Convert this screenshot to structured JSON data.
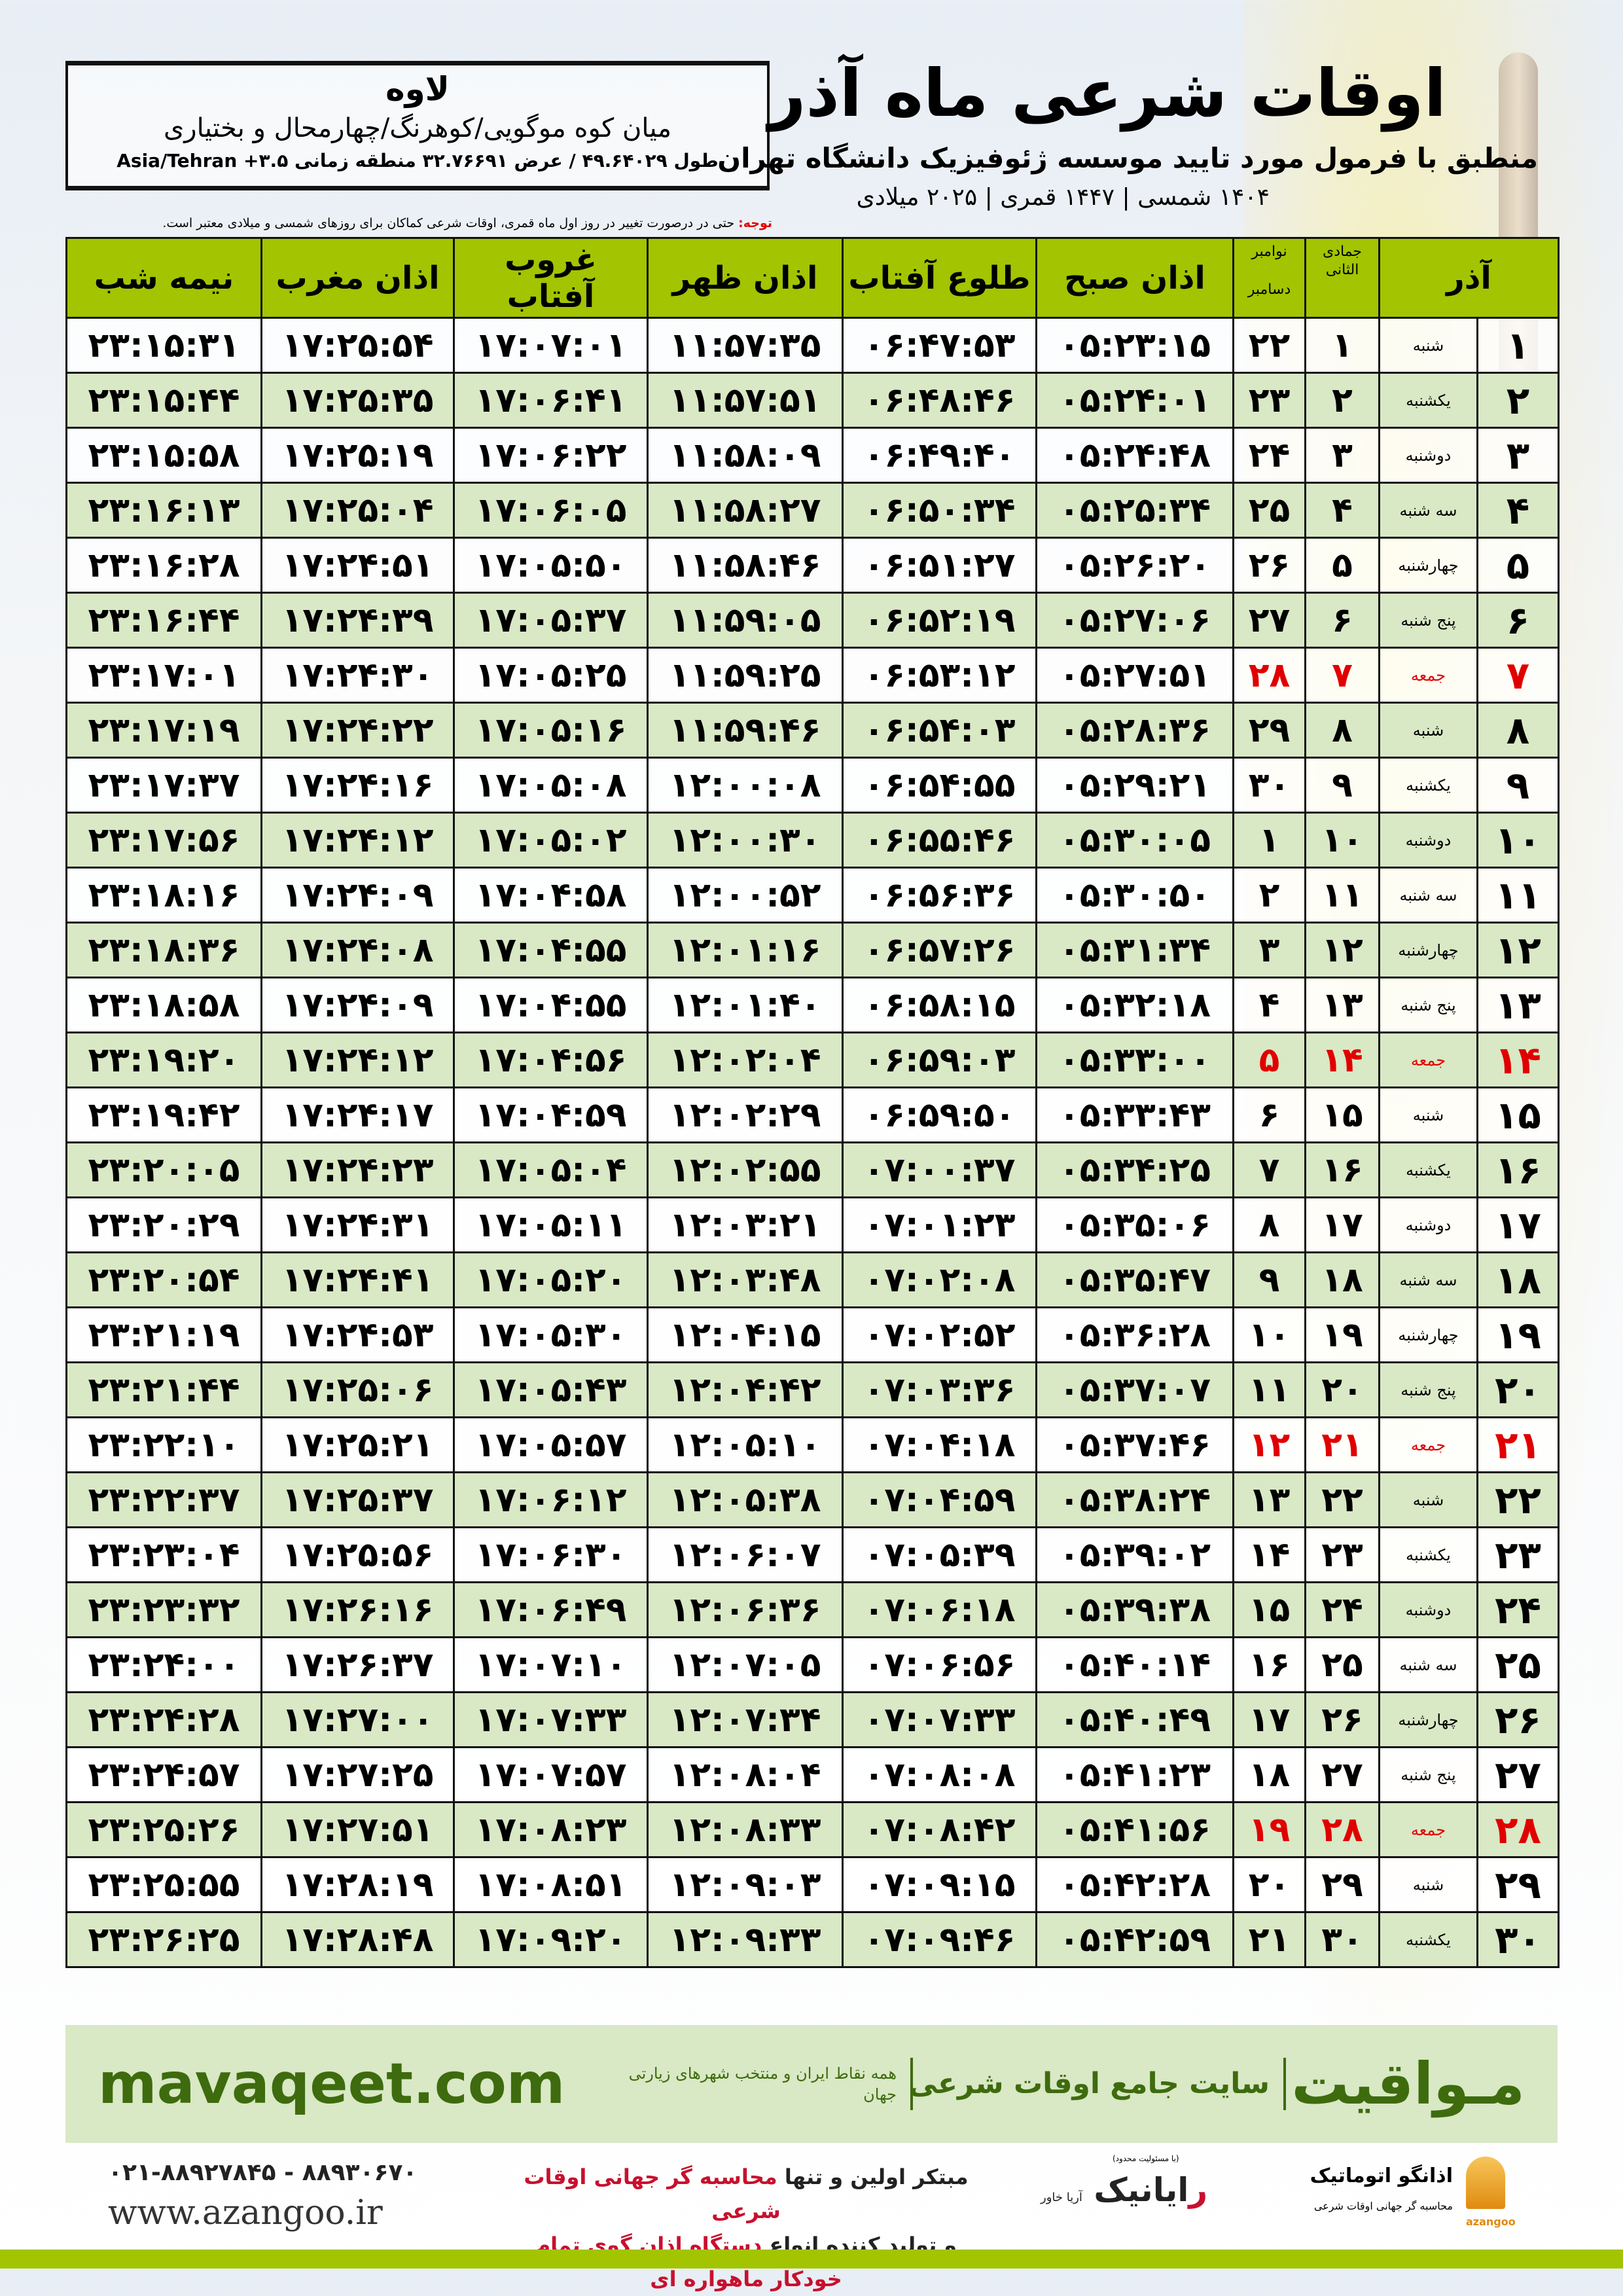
{
  "header": {
    "title": "اوقات شرعی ماه آذر",
    "subtitle": "منطبق با فرمول مورد تایید موسسه ژئوفیزیک دانشگاه تهران",
    "year_line": "۱۴۰۴ شمسی | ۱۴۴۷ قمری | ۲۰۲۵ میلادی",
    "note_label": "توجه:",
    "note_text": " حتی در درصورت تغییر در روز اول ماه قمری، اوقات شرعی کماکان برای روزهای شمسی و میلادی معتبر است."
  },
  "location": {
    "city": "لاوه",
    "region": "میان کوه موگویی/کوهرنگ/چهارمحال و بختیاری",
    "coords": "طول ۴۹.۶۴۰۲۹ / عرض ۳۲.۷۶۶۹۱ منطقه زمانی ۳.۵+ Asia/Tehran"
  },
  "table": {
    "headers": {
      "month": "آذر",
      "hijri": "جمادی الثانی",
      "greg_top": "نوامبر",
      "greg_bottom": "دسامبر",
      "fajr": "اذان صبح",
      "sunrise": "طلوع آفتاب",
      "dhuhr": "اذان ظهر",
      "sunset": "غروب آفتاب",
      "maghrib": "اذان مغرب",
      "midnight": "نیمه شب"
    },
    "holiday_color": "#e00000",
    "header_color": "#a3c400",
    "rows": [
      {
        "day": "۱",
        "weekday": "شنبه",
        "hijri": "۱",
        "greg": "۲۲",
        "fajr": "۰۵:۲۳:۱۵",
        "sunrise": "۰۶:۴۷:۵۳",
        "dhuhr": "۱۱:۵۷:۳۵",
        "sunset": "۱۷:۰۷:۰۱",
        "maghrib": "۱۷:۲۵:۵۴",
        "midnight": "۲۳:۱۵:۳۱",
        "holiday": false
      },
      {
        "day": "۲",
        "weekday": "یکشنبه",
        "hijri": "۲",
        "greg": "۲۳",
        "fajr": "۰۵:۲۴:۰۱",
        "sunrise": "۰۶:۴۸:۴۶",
        "dhuhr": "۱۱:۵۷:۵۱",
        "sunset": "۱۷:۰۶:۴۱",
        "maghrib": "۱۷:۲۵:۳۵",
        "midnight": "۲۳:۱۵:۴۴",
        "holiday": false
      },
      {
        "day": "۳",
        "weekday": "دوشنبه",
        "hijri": "۳",
        "greg": "۲۴",
        "fajr": "۰۵:۲۴:۴۸",
        "sunrise": "۰۶:۴۹:۴۰",
        "dhuhr": "۱۱:۵۸:۰۹",
        "sunset": "۱۷:۰۶:۲۲",
        "maghrib": "۱۷:۲۵:۱۹",
        "midnight": "۲۳:۱۵:۵۸",
        "holiday": false
      },
      {
        "day": "۴",
        "weekday": "سه شنبه",
        "hijri": "۴",
        "greg": "۲۵",
        "fajr": "۰۵:۲۵:۳۴",
        "sunrise": "۰۶:۵۰:۳۴",
        "dhuhr": "۱۱:۵۸:۲۷",
        "sunset": "۱۷:۰۶:۰۵",
        "maghrib": "۱۷:۲۵:۰۴",
        "midnight": "۲۳:۱۶:۱۳",
        "holiday": false
      },
      {
        "day": "۵",
        "weekday": "چهارشنبه",
        "hijri": "۵",
        "greg": "۲۶",
        "fajr": "۰۵:۲۶:۲۰",
        "sunrise": "۰۶:۵۱:۲۷",
        "dhuhr": "۱۱:۵۸:۴۶",
        "sunset": "۱۷:۰۵:۵۰",
        "maghrib": "۱۷:۲۴:۵۱",
        "midnight": "۲۳:۱۶:۲۸",
        "holiday": false
      },
      {
        "day": "۶",
        "weekday": "پنج شنبه",
        "hijri": "۶",
        "greg": "۲۷",
        "fajr": "۰۵:۲۷:۰۶",
        "sunrise": "۰۶:۵۲:۱۹",
        "dhuhr": "۱۱:۵۹:۰۵",
        "sunset": "۱۷:۰۵:۳۷",
        "maghrib": "۱۷:۲۴:۳۹",
        "midnight": "۲۳:۱۶:۴۴",
        "holiday": false
      },
      {
        "day": "۷",
        "weekday": "جمعه",
        "hijri": "۷",
        "greg": "۲۸",
        "fajr": "۰۵:۲۷:۵۱",
        "sunrise": "۰۶:۵۳:۱۲",
        "dhuhr": "۱۱:۵۹:۲۵",
        "sunset": "۱۷:۰۵:۲۵",
        "maghrib": "۱۷:۲۴:۳۰",
        "midnight": "۲۳:۱۷:۰۱",
        "holiday": true
      },
      {
        "day": "۸",
        "weekday": "شنبه",
        "hijri": "۸",
        "greg": "۲۹",
        "fajr": "۰۵:۲۸:۳۶",
        "sunrise": "۰۶:۵۴:۰۳",
        "dhuhr": "۱۱:۵۹:۴۶",
        "sunset": "۱۷:۰۵:۱۶",
        "maghrib": "۱۷:۲۴:۲۲",
        "midnight": "۲۳:۱۷:۱۹",
        "holiday": false
      },
      {
        "day": "۹",
        "weekday": "یکشنبه",
        "hijri": "۹",
        "greg": "۳۰",
        "fajr": "۰۵:۲۹:۲۱",
        "sunrise": "۰۶:۵۴:۵۵",
        "dhuhr": "۱۲:۰۰:۰۸",
        "sunset": "۱۷:۰۵:۰۸",
        "maghrib": "۱۷:۲۴:۱۶",
        "midnight": "۲۳:۱۷:۳۷",
        "holiday": false
      },
      {
        "day": "۱۰",
        "weekday": "دوشنبه",
        "hijri": "۱۰",
        "greg": "۱",
        "fajr": "۰۵:۳۰:۰۵",
        "sunrise": "۰۶:۵۵:۴۶",
        "dhuhr": "۱۲:۰۰:۳۰",
        "sunset": "۱۷:۰۵:۰۲",
        "maghrib": "۱۷:۲۴:۱۲",
        "midnight": "۲۳:۱۷:۵۶",
        "holiday": false
      },
      {
        "day": "۱۱",
        "weekday": "سه شنبه",
        "hijri": "۱۱",
        "greg": "۲",
        "fajr": "۰۵:۳۰:۵۰",
        "sunrise": "۰۶:۵۶:۳۶",
        "dhuhr": "۱۲:۰۰:۵۲",
        "sunset": "۱۷:۰۴:۵۸",
        "maghrib": "۱۷:۲۴:۰۹",
        "midnight": "۲۳:۱۸:۱۶",
        "holiday": false
      },
      {
        "day": "۱۲",
        "weekday": "چهارشنبه",
        "hijri": "۱۲",
        "greg": "۳",
        "fajr": "۰۵:۳۱:۳۴",
        "sunrise": "۰۶:۵۷:۲۶",
        "dhuhr": "۱۲:۰۱:۱۶",
        "sunset": "۱۷:۰۴:۵۵",
        "maghrib": "۱۷:۲۴:۰۸",
        "midnight": "۲۳:۱۸:۳۶",
        "holiday": false
      },
      {
        "day": "۱۳",
        "weekday": "پنج شنبه",
        "hijri": "۱۳",
        "greg": "۴",
        "fajr": "۰۵:۳۲:۱۸",
        "sunrise": "۰۶:۵۸:۱۵",
        "dhuhr": "۱۲:۰۱:۴۰",
        "sunset": "۱۷:۰۴:۵۵",
        "maghrib": "۱۷:۲۴:۰۹",
        "midnight": "۲۳:۱۸:۵۸",
        "holiday": false
      },
      {
        "day": "۱۴",
        "weekday": "جمعه",
        "hijri": "۱۴",
        "greg": "۵",
        "fajr": "۰۵:۳۳:۰۰",
        "sunrise": "۰۶:۵۹:۰۳",
        "dhuhr": "۱۲:۰۲:۰۴",
        "sunset": "۱۷:۰۴:۵۶",
        "maghrib": "۱۷:۲۴:۱۲",
        "midnight": "۲۳:۱۹:۲۰",
        "holiday": true
      },
      {
        "day": "۱۵",
        "weekday": "شنبه",
        "hijri": "۱۵",
        "greg": "۶",
        "fajr": "۰۵:۳۳:۴۳",
        "sunrise": "۰۶:۵۹:۵۰",
        "dhuhr": "۱۲:۰۲:۲۹",
        "sunset": "۱۷:۰۴:۵۹",
        "maghrib": "۱۷:۲۴:۱۷",
        "midnight": "۲۳:۱۹:۴۲",
        "holiday": false
      },
      {
        "day": "۱۶",
        "weekday": "یکشنبه",
        "hijri": "۱۶",
        "greg": "۷",
        "fajr": "۰۵:۳۴:۲۵",
        "sunrise": "۰۷:۰۰:۳۷",
        "dhuhr": "۱۲:۰۲:۵۵",
        "sunset": "۱۷:۰۵:۰۴",
        "maghrib": "۱۷:۲۴:۲۳",
        "midnight": "۲۳:۲۰:۰۵",
        "holiday": false
      },
      {
        "day": "۱۷",
        "weekday": "دوشنبه",
        "hijri": "۱۷",
        "greg": "۸",
        "fajr": "۰۵:۳۵:۰۶",
        "sunrise": "۰۷:۰۱:۲۳",
        "dhuhr": "۱۲:۰۳:۲۱",
        "sunset": "۱۷:۰۵:۱۱",
        "maghrib": "۱۷:۲۴:۳۱",
        "midnight": "۲۳:۲۰:۲۹",
        "holiday": false
      },
      {
        "day": "۱۸",
        "weekday": "سه شنبه",
        "hijri": "۱۸",
        "greg": "۹",
        "fajr": "۰۵:۳۵:۴۷",
        "sunrise": "۰۷:۰۲:۰۸",
        "dhuhr": "۱۲:۰۳:۴۸",
        "sunset": "۱۷:۰۵:۲۰",
        "maghrib": "۱۷:۲۴:۴۱",
        "midnight": "۲۳:۲۰:۵۴",
        "holiday": false
      },
      {
        "day": "۱۹",
        "weekday": "چهارشنبه",
        "hijri": "۱۹",
        "greg": "۱۰",
        "fajr": "۰۵:۳۶:۲۸",
        "sunrise": "۰۷:۰۲:۵۲",
        "dhuhr": "۱۲:۰۴:۱۵",
        "sunset": "۱۷:۰۵:۳۰",
        "maghrib": "۱۷:۲۴:۵۳",
        "midnight": "۲۳:۲۱:۱۹",
        "holiday": false
      },
      {
        "day": "۲۰",
        "weekday": "پنج شنبه",
        "hijri": "۲۰",
        "greg": "۱۱",
        "fajr": "۰۵:۳۷:۰۷",
        "sunrise": "۰۷:۰۳:۳۶",
        "dhuhr": "۱۲:۰۴:۴۲",
        "sunset": "۱۷:۰۵:۴۳",
        "maghrib": "۱۷:۲۵:۰۶",
        "midnight": "۲۳:۲۱:۴۴",
        "holiday": false
      },
      {
        "day": "۲۱",
        "weekday": "جمعه",
        "hijri": "۲۱",
        "greg": "۱۲",
        "fajr": "۰۵:۳۷:۴۶",
        "sunrise": "۰۷:۰۴:۱۸",
        "dhuhr": "۱۲:۰۵:۱۰",
        "sunset": "۱۷:۰۵:۵۷",
        "maghrib": "۱۷:۲۵:۲۱",
        "midnight": "۲۳:۲۲:۱۰",
        "holiday": true
      },
      {
        "day": "۲۲",
        "weekday": "شنبه",
        "hijri": "۲۲",
        "greg": "۱۳",
        "fajr": "۰۵:۳۸:۲۴",
        "sunrise": "۰۷:۰۴:۵۹",
        "dhuhr": "۱۲:۰۵:۳۸",
        "sunset": "۱۷:۰۶:۱۲",
        "maghrib": "۱۷:۲۵:۳۷",
        "midnight": "۲۳:۲۲:۳۷",
        "holiday": false
      },
      {
        "day": "۲۳",
        "weekday": "یکشنبه",
        "hijri": "۲۳",
        "greg": "۱۴",
        "fajr": "۰۵:۳۹:۰۲",
        "sunrise": "۰۷:۰۵:۳۹",
        "dhuhr": "۱۲:۰۶:۰۷",
        "sunset": "۱۷:۰۶:۳۰",
        "maghrib": "۱۷:۲۵:۵۶",
        "midnight": "۲۳:۲۳:۰۴",
        "holiday": false
      },
      {
        "day": "۲۴",
        "weekday": "دوشنبه",
        "hijri": "۲۴",
        "greg": "۱۵",
        "fajr": "۰۵:۳۹:۳۸",
        "sunrise": "۰۷:۰۶:۱۸",
        "dhuhr": "۱۲:۰۶:۳۶",
        "sunset": "۱۷:۰۶:۴۹",
        "maghrib": "۱۷:۲۶:۱۶",
        "midnight": "۲۳:۲۳:۳۲",
        "holiday": false
      },
      {
        "day": "۲۵",
        "weekday": "سه شنبه",
        "hijri": "۲۵",
        "greg": "۱۶",
        "fajr": "۰۵:۴۰:۱۴",
        "sunrise": "۰۷:۰۶:۵۶",
        "dhuhr": "۱۲:۰۷:۰۵",
        "sunset": "۱۷:۰۷:۱۰",
        "maghrib": "۱۷:۲۶:۳۷",
        "midnight": "۲۳:۲۴:۰۰",
        "holiday": false
      },
      {
        "day": "۲۶",
        "weekday": "چهارشنبه",
        "hijri": "۲۶",
        "greg": "۱۷",
        "fajr": "۰۵:۴۰:۴۹",
        "sunrise": "۰۷:۰۷:۳۳",
        "dhuhr": "۱۲:۰۷:۳۴",
        "sunset": "۱۷:۰۷:۳۳",
        "maghrib": "۱۷:۲۷:۰۰",
        "midnight": "۲۳:۲۴:۲۸",
        "holiday": false
      },
      {
        "day": "۲۷",
        "weekday": "پنج شنبه",
        "hijri": "۲۷",
        "greg": "۱۸",
        "fajr": "۰۵:۴۱:۲۳",
        "sunrise": "۰۷:۰۸:۰۸",
        "dhuhr": "۱۲:۰۸:۰۴",
        "sunset": "۱۷:۰۷:۵۷",
        "maghrib": "۱۷:۲۷:۲۵",
        "midnight": "۲۳:۲۴:۵۷",
        "holiday": false
      },
      {
        "day": "۲۸",
        "weekday": "جمعه",
        "hijri": "۲۸",
        "greg": "۱۹",
        "fajr": "۰۵:۴۱:۵۶",
        "sunrise": "۰۷:۰۸:۴۲",
        "dhuhr": "۱۲:۰۸:۳۳",
        "sunset": "۱۷:۰۸:۲۳",
        "maghrib": "۱۷:۲۷:۵۱",
        "midnight": "۲۳:۲۵:۲۶",
        "holiday": true
      },
      {
        "day": "۲۹",
        "weekday": "شنبه",
        "hijri": "۲۹",
        "greg": "۲۰",
        "fajr": "۰۵:۴۲:۲۸",
        "sunrise": "۰۷:۰۹:۱۵",
        "dhuhr": "۱۲:۰۹:۰۳",
        "sunset": "۱۷:۰۸:۵۱",
        "maghrib": "۱۷:۲۸:۱۹",
        "midnight": "۲۳:۲۵:۵۵",
        "holiday": false
      },
      {
        "day": "۳۰",
        "weekday": "یکشنبه",
        "hijri": "۳۰",
        "greg": "۲۱",
        "fajr": "۰۵:۴۲:۵۹",
        "sunrise": "۰۷:۰۹:۴۶",
        "dhuhr": "۱۲:۰۹:۳۳",
        "sunset": "۱۷:۰۹:۲۰",
        "maghrib": "۱۷:۲۸:۴۸",
        "midnight": "۲۳:۲۶:۲۵",
        "holiday": false
      }
    ]
  },
  "banner": {
    "brand": "مـواقیت",
    "slogan": "سایت جامع اوقات شرعی",
    "sub": "همه نقاط ایران و منتخب شهرهای زیارتی جهان",
    "site": "mavaqeet.com",
    "color": "#3e6b0e"
  },
  "footer": {
    "phone": "۰۲۱-۸۸۹۲۷۸۴۵ - ۸۸۹۳۰۶۷۰",
    "www": "www.azangoo.ir",
    "promo_1a": "مبتکر اولین و تنها ",
    "promo_1b": "محاسبه گر جهانی اوقات شرعی",
    "promo_2a": "و تولید کننده انواع ",
    "promo_2b": "دستگاه اذان گوی تمام خودکار ماهواره ای",
    "raynik_r": "ر",
    "raynik": "ایانیک",
    "raynik_sub": "(با مسئولیت محدود)",
    "raynik_side": "آریا خاور",
    "azan_logo": "اذانگو اتوماتیک",
    "azan_sub": "محاسبه گر جهانی اوقات شرعی",
    "azan_en": "azangoo"
  }
}
